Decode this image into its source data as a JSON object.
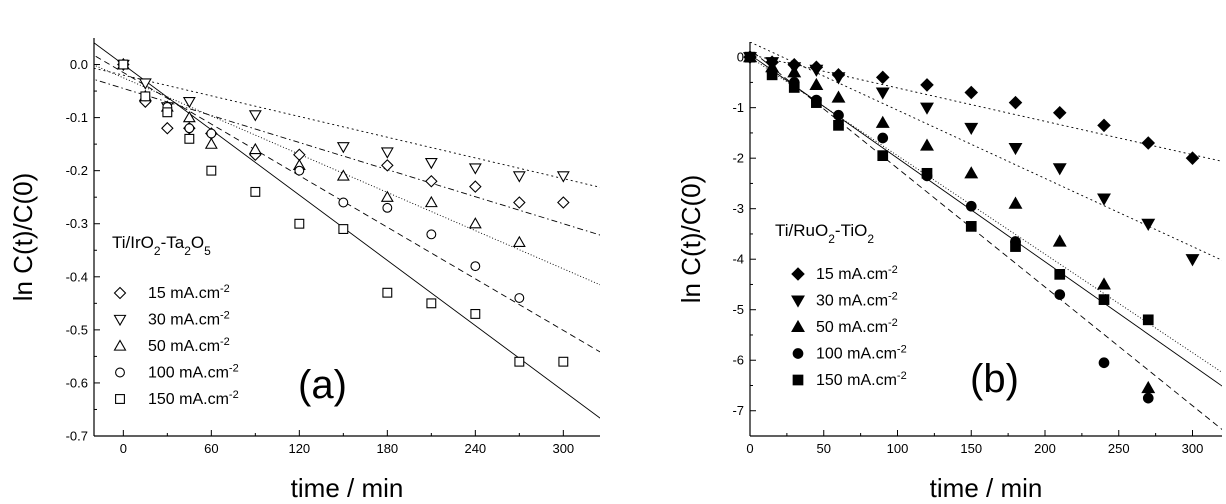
{
  "chart_data": [
    {
      "type": "scatter",
      "panel_label": "(a)",
      "annotation": {
        "base": "Ti/IrO",
        "sub1": "2",
        "mid": "-Ta",
        "sub2": "2",
        "o": "O",
        "sub3": "5"
      },
      "xlabel": "time / min",
      "ylabel": "ln C(t)/C(0)",
      "xlim": [
        -20,
        325
      ],
      "ylim": [
        -0.7,
        0.05
      ],
      "xticks": [
        0,
        60,
        120,
        180,
        240,
        300
      ],
      "yticks": [
        0.0,
        -0.1,
        -0.2,
        -0.3,
        -0.4,
        -0.5,
        -0.6,
        -0.7
      ],
      "ytick_labels": [
        "0.0",
        "-0.1",
        "-0.2",
        "-0.3",
        "-0.4",
        "-0.5",
        "-0.6",
        "-0.7"
      ],
      "marker_fill": "none",
      "legend_placement": "bottom-left",
      "series": [
        {
          "name": "15 mA.cm",
          "sup": "-2",
          "marker": "diamond",
          "line": "dashdot",
          "x": [
            0,
            15,
            30,
            45,
            60,
            90,
            120,
            180,
            210,
            240,
            270,
            300
          ],
          "y": [
            0.0,
            -0.07,
            -0.12,
            -0.12,
            -0.13,
            -0.17,
            -0.17,
            -0.19,
            -0.22,
            -0.23,
            -0.26,
            -0.26
          ],
          "fit": {
            "slope": -0.00085,
            "intercept": -0.045
          }
        },
        {
          "name": "30 mA.cm",
          "sup": "-2",
          "marker": "triangle-down",
          "line": "dotted",
          "x": [
            0,
            15,
            30,
            45,
            90,
            150,
            180,
            210,
            240,
            270,
            300
          ],
          "y": [
            0.0,
            -0.035,
            -0.08,
            -0.07,
            -0.095,
            -0.155,
            -0.165,
            -0.185,
            -0.195,
            -0.21,
            -0.21
          ],
          "fit": {
            "slope": -0.00065,
            "intercept": -0.02
          }
        },
        {
          "name": "50 mA.cm",
          "sup": "-2",
          "marker": "triangle-up",
          "line": "fine-dotted",
          "x": [
            0,
            15,
            30,
            45,
            60,
            90,
            120,
            150,
            180,
            210,
            240,
            270
          ],
          "y": [
            0.0,
            -0.06,
            -0.08,
            -0.1,
            -0.15,
            -0.16,
            -0.19,
            -0.21,
            -0.25,
            -0.26,
            -0.3,
            -0.335
          ],
          "fit": {
            "slope": -0.0012,
            "intercept": -0.025
          }
        },
        {
          "name": "100 mA.cm",
          "sup": "-2",
          "marker": "circle",
          "line": "dashed",
          "x": [
            0,
            15,
            30,
            45,
            60,
            120,
            150,
            180,
            210,
            240,
            270
          ],
          "y": [
            0.0,
            -0.06,
            -0.08,
            -0.12,
            -0.13,
            -0.2,
            -0.26,
            -0.27,
            -0.32,
            -0.38,
            -0.44
          ],
          "fit": {
            "slope": -0.00162,
            "intercept": -0.015
          }
        },
        {
          "name": "150 mA.cm",
          "sup": "-2",
          "marker": "square",
          "line": "solid",
          "x": [
            0,
            15,
            30,
            45,
            60,
            90,
            120,
            150,
            180,
            210,
            240,
            270,
            300
          ],
          "y": [
            0.0,
            -0.06,
            -0.09,
            -0.14,
            -0.2,
            -0.24,
            -0.3,
            -0.31,
            -0.43,
            -0.45,
            -0.47,
            -0.56,
            -0.56
          ],
          "fit": {
            "slope": -0.00205,
            "intercept": 0.0
          }
        }
      ]
    },
    {
      "type": "scatter",
      "panel_label": "(b)",
      "annotation": {
        "base": "Ti/RuO",
        "sub1": "2",
        "mid": "-TiO",
        "sub2": "2"
      },
      "xlabel": "time / min",
      "ylabel": "ln C(t)/C(0)",
      "xlim": [
        0,
        320
      ],
      "ylim": [
        -7.5,
        0.3
      ],
      "xticks": [
        0,
        50,
        100,
        150,
        200,
        250,
        300
      ],
      "yticks": [
        0,
        -1,
        -2,
        -3,
        -4,
        -5,
        -6,
        -7
      ],
      "ytick_labels": [
        "0",
        "-1",
        "-2",
        "-3",
        "-4",
        "-5",
        "-6",
        "-7"
      ],
      "marker_fill": "#000000",
      "legend_placement": "bottom-left",
      "series": [
        {
          "name": "15 mA.cm",
          "sup": "-2",
          "marker": "diamond",
          "line": "dotted",
          "x": [
            0,
            15,
            30,
            45,
            60,
            90,
            120,
            150,
            180,
            210,
            240,
            270,
            300
          ],
          "y": [
            0.0,
            -0.1,
            -0.15,
            -0.2,
            -0.35,
            -0.4,
            -0.55,
            -0.7,
            -0.9,
            -1.1,
            -1.35,
            -1.7,
            -2.0
          ],
          "fit": {
            "slope": -0.0066,
            "intercept": 0.05
          }
        },
        {
          "name": "30 mA.cm",
          "sup": "-2",
          "marker": "triangle-down",
          "line": "dotted",
          "x": [
            0,
            15,
            30,
            45,
            60,
            90,
            120,
            150,
            180,
            210,
            240,
            270,
            300
          ],
          "y": [
            0.0,
            -0.1,
            -0.2,
            -0.25,
            -0.4,
            -0.7,
            -1.0,
            -1.4,
            -1.8,
            -2.2,
            -2.8,
            -3.3,
            -4.0
          ],
          "fit": {
            "slope": -0.0135,
            "intercept": 0.3
          }
        },
        {
          "name": "50 mA.cm",
          "sup": "-2",
          "marker": "triangle-up",
          "line": "fine-dotted",
          "x": [
            0,
            15,
            30,
            45,
            60,
            90,
            120,
            150,
            180,
            210,
            240,
            270
          ],
          "y": [
            0.0,
            -0.2,
            -0.3,
            -0.55,
            -0.8,
            -1.3,
            -1.75,
            -2.3,
            -2.9,
            -3.65,
            -4.5,
            -6.55
          ],
          "fit": {
            "slope": -0.0195,
            "intercept": 0.0
          }
        },
        {
          "name": "100 mA.cm",
          "sup": "-2",
          "marker": "circle",
          "line": "dashed",
          "x": [
            0,
            15,
            30,
            45,
            60,
            90,
            120,
            150,
            180,
            210,
            240,
            270
          ],
          "y": [
            0.0,
            -0.3,
            -0.5,
            -0.85,
            -1.15,
            -1.6,
            -2.35,
            -2.95,
            -3.65,
            -4.7,
            -6.05,
            -6.75
          ],
          "fit": {
            "slope": -0.0235,
            "intercept": 0.15
          }
        },
        {
          "name": "150 mA.cm",
          "sup": "-2",
          "marker": "square",
          "line": "solid",
          "x": [
            0,
            15,
            30,
            45,
            60,
            90,
            120,
            150,
            180,
            210,
            240,
            270
          ],
          "y": [
            0.0,
            -0.35,
            -0.6,
            -0.9,
            -1.35,
            -1.95,
            -2.3,
            -3.35,
            -3.75,
            -4.3,
            -4.8,
            -5.2
          ],
          "fit": {
            "slope": -0.0205,
            "intercept": 0.05
          }
        }
      ]
    }
  ]
}
